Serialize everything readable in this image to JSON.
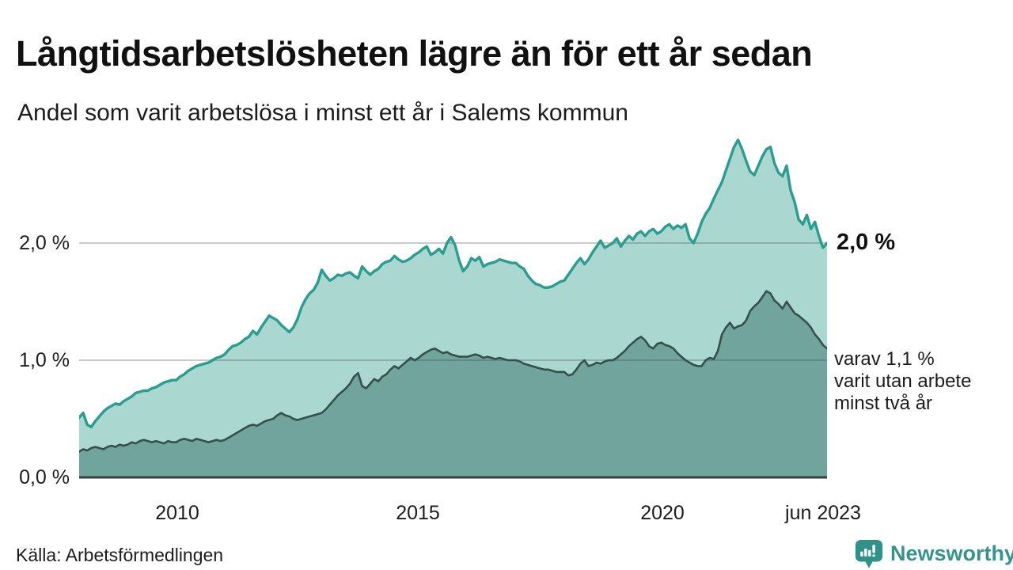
{
  "header": {
    "title": "Långtidsarbetslösheten lägre än för ett år sedan",
    "subtitle": "Andel som varit arbetslösa i minst ett år i Salems kommun"
  },
  "annotations": {
    "latest_total": "2,0 %",
    "secondary": [
      "varav 1,1 %",
      "varit utan arbete",
      "minst två år"
    ]
  },
  "footer": {
    "source": "Källa: Arbetsförmedlingen",
    "brand": "Newsworthy",
    "brand_icon": "bar-chart-bubble-icon"
  },
  "colors": {
    "series1_line": "#2a9d91",
    "series1_fill": "#abd7d1",
    "series2_line": "#33504d",
    "series2_fill": "#72a49e",
    "gridline": "rgba(50,65,70,0.27)",
    "axis": "#3a3f42",
    "brand_teal": "#35948b",
    "text": "#1c1c1c"
  },
  "chart_data": {
    "type": "area",
    "title": "Långtidsarbetslösheten lägre än för ett år sedan",
    "subtitle": "Andel som varit arbetslösa i minst ett år i Salems kommun",
    "unit": "%",
    "frequency": "monthly",
    "x_start": "2008-01",
    "x_end": "2023-06",
    "x_tick_labels": [
      "2010",
      "2015",
      "2020",
      "jun 2023"
    ],
    "y_tick_labels": [
      "2,0 %",
      "1,0 %",
      "0,0 %"
    ],
    "ylim": [
      0,
      3.05
    ],
    "grid": true,
    "legend": "annotated at line ends",
    "series": [
      {
        "name": "Andel arbetslösa minst ett år",
        "end_value": 2.0,
        "end_value_label": "2,0 %",
        "line_color": "#2a9d91",
        "fill_color": "#abd7d1",
        "values": [
          0.51,
          0.55,
          0.45,
          0.43,
          0.48,
          0.52,
          0.56,
          0.59,
          0.61,
          0.63,
          0.62,
          0.65,
          0.67,
          0.69,
          0.72,
          0.73,
          0.74,
          0.74,
          0.76,
          0.77,
          0.79,
          0.81,
          0.82,
          0.83,
          0.83,
          0.86,
          0.88,
          0.91,
          0.93,
          0.95,
          0.96,
          0.97,
          0.98,
          1.0,
          1.02,
          1.03,
          1.05,
          1.09,
          1.12,
          1.13,
          1.15,
          1.18,
          1.2,
          1.25,
          1.22,
          1.28,
          1.33,
          1.38,
          1.36,
          1.34,
          1.3,
          1.27,
          1.24,
          1.28,
          1.35,
          1.45,
          1.52,
          1.57,
          1.6,
          1.66,
          1.77,
          1.72,
          1.68,
          1.7,
          1.73,
          1.72,
          1.74,
          1.75,
          1.72,
          1.7,
          1.8,
          1.76,
          1.73,
          1.76,
          1.78,
          1.82,
          1.84,
          1.85,
          1.89,
          1.86,
          1.84,
          1.85,
          1.87,
          1.9,
          1.92,
          1.95,
          1.97,
          1.9,
          1.92,
          1.95,
          1.91,
          2.0,
          2.05,
          1.98,
          1.85,
          1.76,
          1.8,
          1.87,
          1.85,
          1.88,
          1.8,
          1.82,
          1.83,
          1.84,
          1.86,
          1.85,
          1.84,
          1.83,
          1.83,
          1.8,
          1.78,
          1.72,
          1.68,
          1.65,
          1.64,
          1.62,
          1.62,
          1.63,
          1.65,
          1.67,
          1.68,
          1.73,
          1.78,
          1.83,
          1.87,
          1.82,
          1.86,
          1.92,
          1.97,
          2.02,
          1.96,
          1.98,
          2.0,
          2.04,
          1.97,
          2.02,
          2.06,
          2.03,
          2.08,
          2.1,
          2.06,
          2.1,
          2.12,
          2.08,
          2.1,
          2.14,
          2.16,
          2.12,
          2.15,
          2.13,
          2.16,
          2.04,
          2.0,
          2.08,
          2.18,
          2.25,
          2.3,
          2.38,
          2.45,
          2.52,
          2.62,
          2.72,
          2.82,
          2.88,
          2.8,
          2.7,
          2.61,
          2.58,
          2.66,
          2.74,
          2.8,
          2.82,
          2.68,
          2.6,
          2.57,
          2.66,
          2.45,
          2.35,
          2.2,
          2.16,
          2.24,
          2.12,
          2.18,
          2.06,
          1.96,
          2.0
        ]
      },
      {
        "name": "varav arbetslösa minst två år",
        "end_value": 1.1,
        "end_value_label": "varav 1,1 % varit utan arbete minst två år",
        "line_color": "#33504d",
        "fill_color": "#72a49e",
        "values": [
          0.22,
          0.24,
          0.23,
          0.25,
          0.26,
          0.25,
          0.24,
          0.26,
          0.27,
          0.26,
          0.28,
          0.27,
          0.28,
          0.3,
          0.29,
          0.31,
          0.32,
          0.31,
          0.3,
          0.31,
          0.3,
          0.29,
          0.31,
          0.3,
          0.3,
          0.32,
          0.33,
          0.32,
          0.31,
          0.33,
          0.32,
          0.31,
          0.3,
          0.31,
          0.32,
          0.31,
          0.32,
          0.34,
          0.36,
          0.38,
          0.4,
          0.42,
          0.44,
          0.45,
          0.44,
          0.46,
          0.48,
          0.49,
          0.5,
          0.53,
          0.55,
          0.53,
          0.52,
          0.5,
          0.49,
          0.5,
          0.51,
          0.52,
          0.53,
          0.54,
          0.55,
          0.58,
          0.62,
          0.66,
          0.7,
          0.73,
          0.76,
          0.8,
          0.86,
          0.89,
          0.78,
          0.76,
          0.8,
          0.84,
          0.82,
          0.86,
          0.88,
          0.92,
          0.95,
          0.93,
          0.96,
          0.99,
          1.02,
          1.0,
          1.02,
          1.05,
          1.07,
          1.09,
          1.1,
          1.08,
          1.06,
          1.07,
          1.05,
          1.04,
          1.03,
          1.03,
          1.03,
          1.04,
          1.05,
          1.04,
          1.02,
          1.03,
          1.02,
          1.01,
          1.02,
          1.01,
          1.0,
          1.0,
          1.0,
          0.99,
          0.97,
          0.96,
          0.95,
          0.94,
          0.93,
          0.92,
          0.92,
          0.91,
          0.9,
          0.9,
          0.9,
          0.87,
          0.88,
          0.92,
          0.97,
          1.0,
          0.95,
          0.96,
          0.98,
          0.97,
          0.99,
          1.0,
          1.0,
          1.02,
          1.05,
          1.08,
          1.12,
          1.15,
          1.18,
          1.2,
          1.17,
          1.12,
          1.1,
          1.14,
          1.15,
          1.13,
          1.12,
          1.1,
          1.06,
          1.03,
          1.0,
          0.98,
          0.96,
          0.95,
          0.95,
          1.0,
          1.02,
          1.01,
          1.08,
          1.22,
          1.28,
          1.32,
          1.27,
          1.29,
          1.3,
          1.34,
          1.42,
          1.46,
          1.49,
          1.54,
          1.59,
          1.57,
          1.51,
          1.48,
          1.44,
          1.5,
          1.45,
          1.4,
          1.38,
          1.35,
          1.32,
          1.28,
          1.22,
          1.18,
          1.13,
          1.1
        ]
      }
    ]
  }
}
